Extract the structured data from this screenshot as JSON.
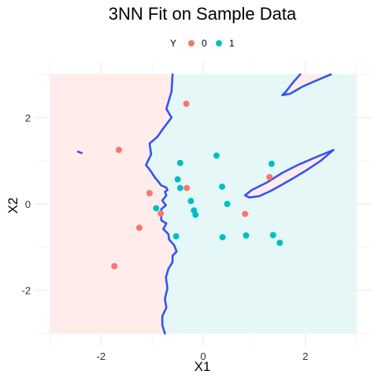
{
  "chart_data": {
    "type": "scatter",
    "title": "3NN Fit on Sample Data",
    "xlabel": "X1",
    "ylabel": "X2",
    "xlim": [
      -3.3,
      3.3
    ],
    "ylim": [
      -3.3,
      3.3
    ],
    "x_ticks": [
      -2,
      0,
      2
    ],
    "y_ticks": [
      -2,
      0,
      2
    ],
    "grid": true,
    "legend": {
      "title": "Y",
      "position": "top",
      "entries": [
        {
          "label": "0",
          "color": "#F8766D"
        },
        {
          "label": "1",
          "color": "#00BFC4"
        }
      ]
    },
    "region_colors": {
      "0": "#FFECEB",
      "1": "#E6F7F8"
    },
    "boundary_color": "#3355EE",
    "region_extent": {
      "x": [
        -3,
        3
      ],
      "y": [
        -3,
        3
      ]
    },
    "series": [
      {
        "name": "0",
        "color": "#F8766D",
        "points": [
          {
            "x": -0.33,
            "y": 2.32
          },
          {
            "x": -1.65,
            "y": 1.25
          },
          {
            "x": -1.05,
            "y": 0.25
          },
          {
            "x": -0.32,
            "y": 0.37
          },
          {
            "x": -0.83,
            "y": -0.22
          },
          {
            "x": -1.25,
            "y": -0.55
          },
          {
            "x": -1.74,
            "y": -1.44
          },
          {
            "x": 0.82,
            "y": -0.23
          },
          {
            "x": 1.3,
            "y": 0.62
          }
        ]
      },
      {
        "name": "1",
        "color": "#00BFC4",
        "points": [
          {
            "x": -0.45,
            "y": 0.95
          },
          {
            "x": 0.26,
            "y": 1.12
          },
          {
            "x": -0.5,
            "y": 0.57
          },
          {
            "x": -0.45,
            "y": 0.37
          },
          {
            "x": 1.34,
            "y": 0.93
          },
          {
            "x": 0.37,
            "y": 0.4
          },
          {
            "x": -0.92,
            "y": -0.1
          },
          {
            "x": -0.24,
            "y": 0.07
          },
          {
            "x": -0.18,
            "y": -0.15
          },
          {
            "x": 0.47,
            "y": 0.0
          },
          {
            "x": -0.15,
            "y": -0.25
          },
          {
            "x": -0.53,
            "y": -0.75
          },
          {
            "x": 0.38,
            "y": -0.77
          },
          {
            "x": 0.84,
            "y": -0.73
          },
          {
            "x": 1.37,
            "y": -0.72
          },
          {
            "x": 1.5,
            "y": -0.9
          }
        ]
      }
    ],
    "boundaries": [
      {
        "name": "main",
        "points": [
          [
            -0.6,
            3.0
          ],
          [
            -0.62,
            2.6
          ],
          [
            -0.72,
            2.2
          ],
          [
            -0.62,
            2.0
          ],
          [
            -0.78,
            1.75
          ],
          [
            -0.9,
            1.55
          ],
          [
            -1.05,
            1.4
          ],
          [
            -1.02,
            1.15
          ],
          [
            -1.12,
            0.9
          ],
          [
            -1.02,
            0.75
          ],
          [
            -0.95,
            0.62
          ],
          [
            -0.88,
            0.52
          ],
          [
            -0.82,
            0.43
          ],
          [
            -0.72,
            0.38
          ],
          [
            -0.7,
            0.32
          ],
          [
            -0.75,
            0.28
          ],
          [
            -0.72,
            0.2
          ],
          [
            -0.8,
            0.08
          ],
          [
            -0.73,
            -0.03
          ],
          [
            -0.82,
            -0.12
          ],
          [
            -0.82,
            -0.38
          ],
          [
            -0.72,
            -0.45
          ],
          [
            -0.78,
            -0.58
          ],
          [
            -0.68,
            -0.7
          ],
          [
            -0.67,
            -0.82
          ],
          [
            -0.57,
            -0.95
          ],
          [
            -0.52,
            -1.1
          ],
          [
            -0.6,
            -1.2
          ],
          [
            -0.6,
            -1.35
          ],
          [
            -0.68,
            -1.5
          ],
          [
            -0.73,
            -1.7
          ],
          [
            -0.7,
            -1.95
          ],
          [
            -0.75,
            -2.2
          ],
          [
            -0.72,
            -2.4
          ],
          [
            -0.8,
            -2.6
          ],
          [
            -0.8,
            -2.8
          ],
          [
            -0.75,
            -3.0
          ]
        ]
      },
      {
        "name": "wedge",
        "points": [
          [
            2.55,
            1.25
          ],
          [
            2.2,
            1.08
          ],
          [
            1.85,
            0.9
          ],
          [
            1.55,
            0.72
          ],
          [
            1.25,
            0.5
          ],
          [
            0.95,
            0.32
          ],
          [
            0.82,
            0.2
          ],
          [
            0.9,
            0.15
          ],
          [
            1.1,
            0.18
          ],
          [
            1.32,
            0.3
          ],
          [
            1.55,
            0.45
          ],
          [
            1.8,
            0.62
          ],
          [
            2.05,
            0.8
          ],
          [
            2.3,
            1.0
          ],
          [
            2.55,
            1.25
          ]
        ]
      },
      {
        "name": "top-right",
        "points": [
          [
            1.9,
            3.0
          ],
          [
            1.75,
            2.8
          ],
          [
            1.62,
            2.6
          ],
          [
            1.55,
            2.52
          ],
          [
            1.7,
            2.55
          ],
          [
            1.95,
            2.72
          ],
          [
            2.2,
            2.85
          ],
          [
            2.5,
            3.0
          ]
        ]
      },
      {
        "name": "left-dot",
        "points": [
          [
            -2.45,
            1.21
          ],
          [
            -2.38,
            1.18
          ]
        ]
      }
    ]
  }
}
